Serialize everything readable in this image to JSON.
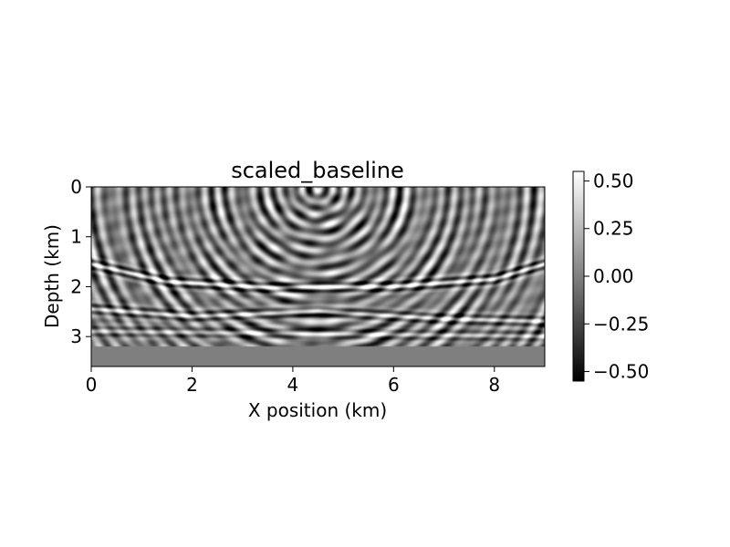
{
  "chart_data": {
    "type": "heatmap",
    "title": "scaled_baseline",
    "xlabel": "X position (km)",
    "ylabel": "Depth (km)",
    "xlim": [
      0,
      9
    ],
    "ylim": [
      3.6,
      0
    ],
    "x_ticks": [
      {
        "value": 0,
        "label": "0"
      },
      {
        "value": 2,
        "label": "2"
      },
      {
        "value": 4,
        "label": "4"
      },
      {
        "value": 6,
        "label": "6"
      },
      {
        "value": 8,
        "label": "8"
      }
    ],
    "y_ticks": [
      {
        "value": 0,
        "label": "0"
      },
      {
        "value": 1,
        "label": "1"
      },
      {
        "value": 2,
        "label": "2"
      },
      {
        "value": 3,
        "label": "3"
      }
    ],
    "colormap": "gray",
    "colorbar": {
      "vmin": -0.55,
      "vmax": 0.55,
      "ticks": [
        {
          "value": 0.5,
          "label": "0.50"
        },
        {
          "value": 0.25,
          "label": "0.25"
        },
        {
          "value": 0.0,
          "label": "0.00"
        },
        {
          "value": -0.25,
          "label": "−0.25"
        },
        {
          "value": -0.5,
          "label": "−0.50"
        }
      ]
    },
    "features": {
      "source_x": 4.5,
      "reflectors": [
        {
          "x": [
            0,
            1.5,
            3.5,
            6.0,
            8.0,
            9.0
          ],
          "depth": [
            1.55,
            1.9,
            2.02,
            2.0,
            1.85,
            1.55
          ]
        },
        {
          "x": [
            0,
            2.0,
            4.5,
            7.0,
            9.0
          ],
          "depth": [
            2.45,
            2.6,
            2.5,
            2.65,
            2.7
          ]
        },
        {
          "x": [
            0,
            4.5,
            9.0
          ],
          "depth": [
            2.9,
            2.95,
            3.0
          ]
        }
      ],
      "padded_region_depth": [
        3.2,
        3.6
      ]
    }
  }
}
